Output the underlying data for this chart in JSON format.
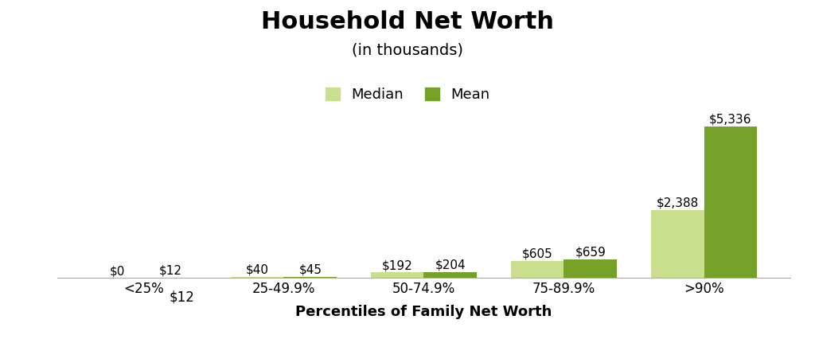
{
  "title": "Household Net Worth",
  "subtitle": "(in thousands)",
  "xlabel": "Percentiles of Family Net Worth",
  "categories": [
    "<25%",
    "25-49.9%",
    "50-74.9%",
    "75-89.9%",
    ">90%"
  ],
  "median_values": [
    0,
    40,
    192,
    605,
    2388
  ],
  "mean_values": [
    12,
    45,
    204,
    659,
    5336
  ],
  "median_labels": [
    "$0",
    "$40",
    "$192",
    "$605",
    "$2,388"
  ],
  "mean_labels": [
    "$12",
    "$45",
    "$204",
    "$659",
    "$5,336"
  ],
  "median_color": "#c8df8e",
  "mean_color": "#76a128",
  "bar_width": 0.38,
  "ylim": [
    0,
    6200
  ],
  "background_color": "#ffffff",
  "title_fontsize": 22,
  "subtitle_fontsize": 14,
  "xlabel_fontsize": 13,
  "label_fontsize": 11,
  "legend_fontsize": 13,
  "tick_fontsize": 12
}
